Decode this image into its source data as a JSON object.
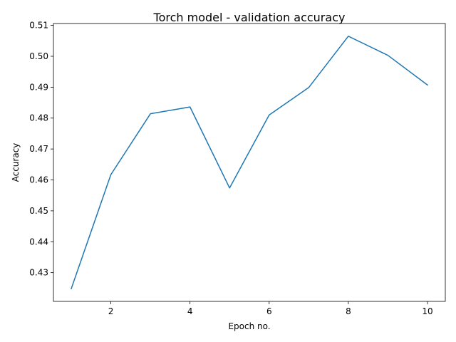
{
  "chart_data": {
    "type": "line",
    "title": "Torch model - validation accuracy",
    "xlabel": "Epoch no.",
    "ylabel": "Accuracy",
    "x": [
      1,
      2,
      3,
      4,
      5,
      6,
      7,
      8,
      9,
      10
    ],
    "series": [
      {
        "values": [
          0.4248,
          0.4617,
          0.4814,
          0.4836,
          0.4574,
          0.481,
          0.4899,
          0.5065,
          0.5003,
          0.4907
        ]
      }
    ],
    "xlim": [
      0.55,
      10.45
    ],
    "ylim": [
      0.4207,
      0.5106
    ],
    "xticks": [
      2,
      4,
      6,
      8,
      10
    ],
    "yticks": [
      0.43,
      0.44,
      0.45,
      0.46,
      0.47,
      0.48,
      0.49,
      0.5,
      0.51
    ],
    "ytick_labels": [
      "0.43",
      "0.44",
      "0.45",
      "0.46",
      "0.47",
      "0.48",
      "0.49",
      "0.50",
      "0.51"
    ],
    "grid": false,
    "line_color": "#1f77b4"
  }
}
